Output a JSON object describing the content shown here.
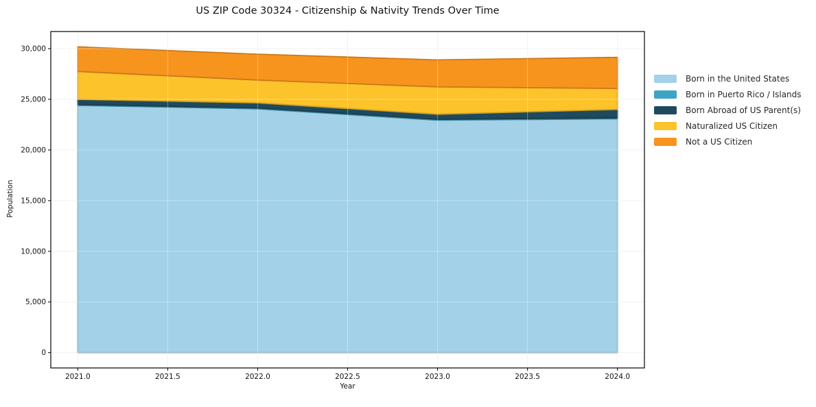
{
  "chart_data": {
    "type": "area",
    "stacked": true,
    "title": "US ZIP Code 30324 - Citizenship & Nativity Trends Over Time",
    "xlabel": "Year",
    "ylabel": "Population",
    "x": [
      2021,
      2022,
      2023,
      2024
    ],
    "series": [
      {
        "name": "Born in the United States",
        "color": "#a3d1e8",
        "values": [
          24400,
          24060,
          22940,
          23080
        ]
      },
      {
        "name": "Born in Puerto Rico / Islands",
        "color": "#3fa3c4",
        "values": [
          90,
          90,
          90,
          90
        ]
      },
      {
        "name": "Born Abroad of US Parent(s)",
        "color": "#1f4a5e",
        "values": [
          510,
          500,
          500,
          830
        ]
      },
      {
        "name": "Naturalized US Citizen",
        "color": "#fcc32a",
        "values": [
          2750,
          2250,
          2700,
          2070
        ]
      },
      {
        "name": "Not a US Citizen",
        "color": "#f7941e",
        "values": [
          2430,
          2550,
          2660,
          3070
        ]
      }
    ],
    "totals_by_year": [
      30180,
      29450,
      28890,
      29140
    ],
    "xticks": [
      2021.0,
      2021.5,
      2022.0,
      2022.5,
      2023.0,
      2023.5,
      2024.0
    ],
    "yticks": [
      0,
      5000,
      10000,
      15000,
      20000,
      25000,
      30000
    ],
    "xlim": [
      2020.85,
      2024.15
    ],
    "ylim": [
      -1509,
      31689
    ],
    "grid": true,
    "legend_position": "right"
  }
}
